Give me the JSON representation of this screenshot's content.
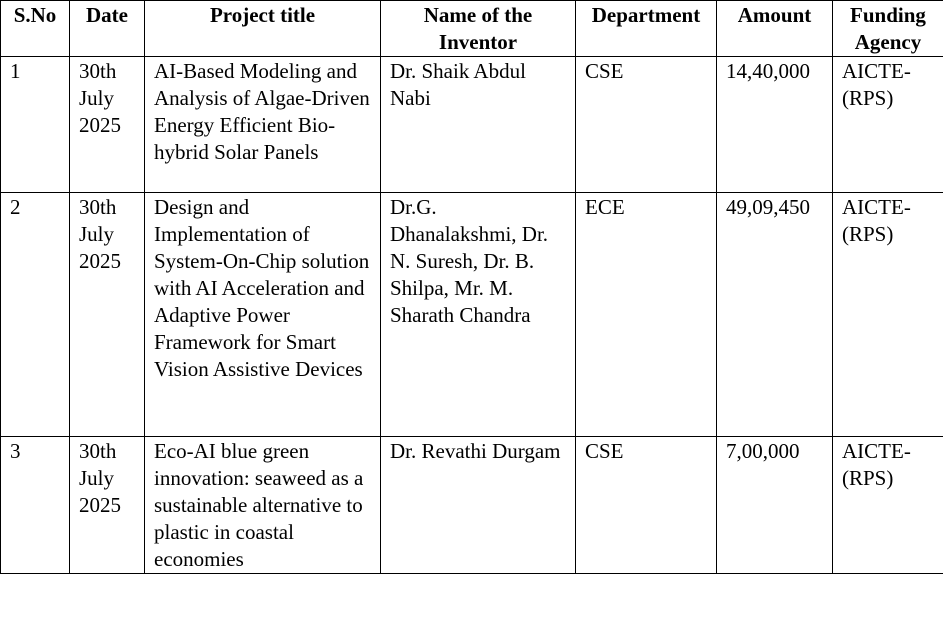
{
  "table": {
    "headers": [
      "S.No",
      "Date",
      "Project title",
      "Name of the Inventor",
      "Department",
      "Amount",
      "Funding Agency"
    ],
    "rows": [
      [
        "1",
        "30th July 2025",
        "AI-Based Modeling and Analysis of Algae-Driven Energy Efficient Bio-hybrid Solar Panels",
        "Dr. Shaik Abdul Nabi",
        "CSE",
        "14,40,000",
        "AICTE-(RPS)"
      ],
      [
        "2",
        "30th July 2025",
        "Design and Implementation of System-On-Chip solution with AI Acceleration and Adaptive Power Framework for Smart Vision Assistive Devices",
        "Dr.G. Dhanalakshmi, Dr. N. Suresh, Dr. B. Shilpa, Mr. M. Sharath Chandra",
        "ECE",
        "49,09,450",
        "AICTE-(RPS)"
      ],
      [
        "3",
        "30th July 2025",
        "Eco-AI blue green innovation: seaweed as a sustainable alternative to plastic in coastal economies",
        "Dr. Revathi Durgam",
        "CSE",
        "7,00,000",
        "AICTE-(RPS)"
      ]
    ]
  }
}
